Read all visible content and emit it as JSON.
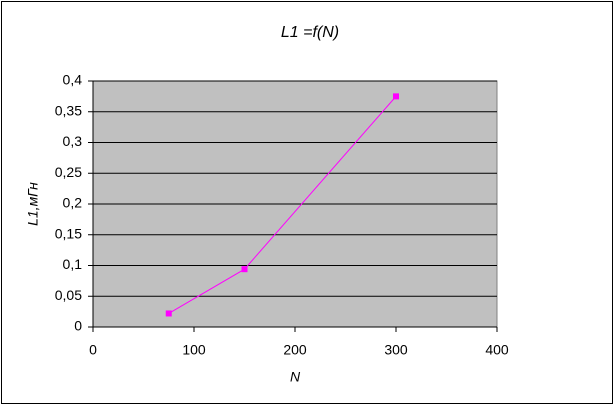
{
  "chart_data": {
    "type": "line",
    "title": "L1 =f(N)",
    "x_label": "N",
    "y_label": "L1,мГн",
    "x": [
      75,
      150,
      300
    ],
    "series": [
      {
        "name": "L1",
        "color": "#ff00ff",
        "values": [
          0.022,
          0.094,
          0.375
        ]
      }
    ],
    "xlim": [
      0,
      400
    ],
    "xticks": [
      0,
      100,
      200,
      300,
      400
    ],
    "ylim": [
      0,
      0.4
    ],
    "yticks": [
      0,
      {
        "value": 0.05,
        "label": "0,05"
      },
      {
        "value": 0.1,
        "label": "0,1"
      },
      {
        "value": 0.15,
        "label": "0,15"
      },
      {
        "value": 0.2,
        "label": "0,2"
      },
      {
        "value": 0.25,
        "label": "0,25"
      },
      {
        "value": 0.3,
        "label": "0,3"
      },
      {
        "value": 0.35,
        "label": "0,35"
      },
      {
        "value": 0.4,
        "label": "0,4"
      }
    ],
    "grid": true,
    "plot_background": "#c0c0c0",
    "marker": "square"
  }
}
